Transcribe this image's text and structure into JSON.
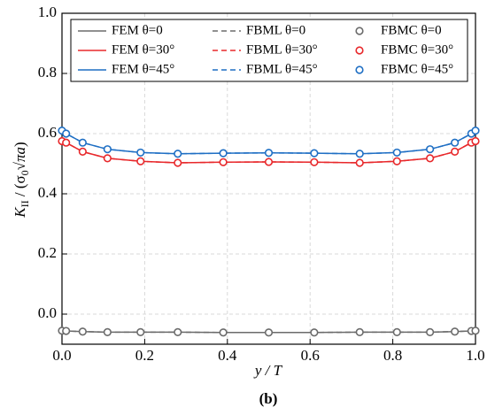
{
  "chart_data": {
    "type": "line",
    "x_label": "y / T",
    "y_label": [
      "K",
      "II",
      " / (σ",
      "0",
      "√πa",
      ")"
    ],
    "caption": "(b)",
    "x": [
      0,
      0.01,
      0.05,
      0.11,
      0.19,
      0.28,
      0.39,
      0.5,
      0.61,
      0.72,
      0.81,
      0.89,
      0.95,
      0.99,
      1.0
    ],
    "series": [
      {
        "name": "FEM θ=0",
        "color": "#6b6b6b",
        "style": "solid",
        "values": [
          -0.055,
          -0.056,
          -0.058,
          -0.06,
          -0.06,
          -0.06,
          -0.061,
          -0.061,
          -0.061,
          -0.06,
          -0.06,
          -0.06,
          -0.058,
          -0.056,
          -0.055
        ]
      },
      {
        "name": "FEM θ=30°",
        "color": "#e8282b",
        "style": "solid",
        "values": [
          0.575,
          0.57,
          0.54,
          0.518,
          0.508,
          0.503,
          0.505,
          0.506,
          0.505,
          0.503,
          0.508,
          0.518,
          0.54,
          0.57,
          0.575
        ]
      },
      {
        "name": "FEM θ=45°",
        "color": "#1f6fc4",
        "style": "solid",
        "values": [
          0.61,
          0.6,
          0.57,
          0.548,
          0.537,
          0.533,
          0.535,
          0.536,
          0.535,
          0.533,
          0.537,
          0.548,
          0.57,
          0.6,
          0.61
        ]
      },
      {
        "name": "FBML θ=0",
        "color": "#6b6b6b",
        "style": "dashed",
        "values": [
          -0.055,
          -0.056,
          -0.058,
          -0.06,
          -0.06,
          -0.06,
          -0.061,
          -0.061,
          -0.061,
          -0.06,
          -0.06,
          -0.06,
          -0.058,
          -0.056,
          -0.055
        ]
      },
      {
        "name": "FBML θ=30°",
        "color": "#e8282b",
        "style": "dashed",
        "values": [
          0.575,
          0.57,
          0.54,
          0.518,
          0.508,
          0.503,
          0.505,
          0.506,
          0.505,
          0.503,
          0.508,
          0.518,
          0.54,
          0.57,
          0.575
        ]
      },
      {
        "name": "FBML θ=45°",
        "color": "#1f6fc4",
        "style": "dashed",
        "values": [
          0.61,
          0.6,
          0.57,
          0.548,
          0.537,
          0.533,
          0.535,
          0.536,
          0.535,
          0.533,
          0.537,
          0.548,
          0.57,
          0.6,
          0.61
        ]
      },
      {
        "name": "FBMC θ=0",
        "color": "#6b6b6b",
        "style": "marker",
        "values": [
          -0.055,
          -0.056,
          -0.058,
          -0.06,
          -0.06,
          -0.06,
          -0.061,
          -0.061,
          -0.061,
          -0.06,
          -0.06,
          -0.06,
          -0.058,
          -0.056,
          -0.055
        ]
      },
      {
        "name": "FBMC θ=30°",
        "color": "#e8282b",
        "style": "marker",
        "values": [
          0.575,
          0.57,
          0.54,
          0.518,
          0.508,
          0.503,
          0.505,
          0.506,
          0.505,
          0.503,
          0.508,
          0.518,
          0.54,
          0.57,
          0.575
        ]
      },
      {
        "name": "FBMC θ=45°",
        "color": "#1f6fc4",
        "style": "marker",
        "values": [
          0.61,
          0.6,
          0.57,
          0.548,
          0.537,
          0.533,
          0.535,
          0.536,
          0.535,
          0.533,
          0.537,
          0.548,
          0.57,
          0.6,
          0.61
        ]
      }
    ],
    "xlim": [
      0,
      1
    ],
    "ylim": [
      -0.1,
      1.0
    ],
    "xticks": [
      {
        "value": 0,
        "label": "0.0"
      },
      0.2,
      0.4,
      0.6,
      0.8,
      {
        "value": 1,
        "label": "1.0"
      }
    ],
    "yticks": [
      {
        "value": 0,
        "label": "0.0"
      },
      0.2,
      0.4,
      0.6,
      0.8,
      {
        "value": 1,
        "label": "1.0"
      }
    ],
    "grid": true
  }
}
